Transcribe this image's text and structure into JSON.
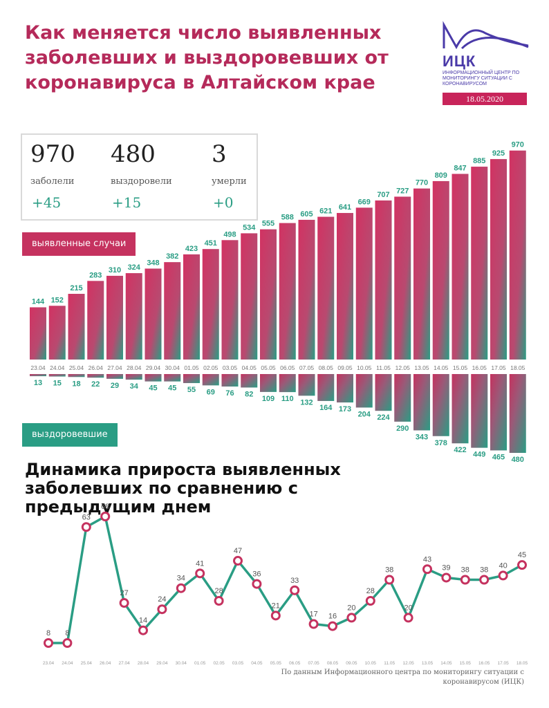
{
  "title": "Как меняется число выявленных заболевших и выздоровевших от коронавируса в Алтайском крае",
  "logo": {
    "abbr": "ИЦК",
    "subtitle": "ИНФОРМАЦИОННЫЙ ЦЕНТР ПО МОНИТОРИНГУ СИТУАЦИИ С КОРОНАВИРУСОМ",
    "date": "18.05.2020"
  },
  "stats": {
    "cases": {
      "value": "970",
      "label": "заболели",
      "increase": "+45"
    },
    "recovered": {
      "value": "480",
      "label": "выздоровели",
      "increase": "+15"
    },
    "deaths": {
      "value": "3",
      "label": "умерли",
      "increase": "+0"
    }
  },
  "labels": {
    "cases_tag": "выявленные случаи",
    "recovered_tag": "выздоровевшие"
  },
  "subtitle": "Динамика прироста выявленных заболевших по сравнению с предыдущим днем",
  "source": "По данным Информационного центра по мониторингу ситуации с коронавирусом (ИЦК)",
  "colors": {
    "accent": "#c5325f",
    "teal": "#2a9d84",
    "logo": "#4a3aa8"
  },
  "chart_data": [
    {
      "type": "bar",
      "title": "Выявленные случаи и выздоровевшие",
      "categories": [
        "23.04",
        "24.04",
        "25.04",
        "26.04",
        "27.04",
        "28.04",
        "29.04",
        "30.04",
        "01.05",
        "02.05",
        "03.05",
        "04.05",
        "05.05",
        "06.05",
        "07.05",
        "08.05",
        "09.05",
        "10.05",
        "11.05",
        "12.05",
        "13.05",
        "14.05",
        "15.05",
        "16.05",
        "17.05",
        "18.05"
      ],
      "series": [
        {
          "name": "выявленные случаи",
          "values": [
            144,
            152,
            215,
            283,
            310,
            324,
            348,
            382,
            423,
            451,
            498,
            534,
            555,
            588,
            605,
            621,
            641,
            669,
            707,
            727,
            770,
            809,
            847,
            885,
            925,
            970
          ]
        },
        {
          "name": "выздоровевшие",
          "values": [
            13,
            15,
            18,
            22,
            29,
            34,
            45,
            45,
            55,
            69,
            76,
            82,
            109,
            110,
            132,
            164,
            173,
            204,
            224,
            290,
            343,
            378,
            422,
            449,
            465,
            480
          ]
        }
      ]
    },
    {
      "type": "line",
      "title": "Динамика прироста выявленных заболевших по сравнению с предыдущим днем",
      "categories": [
        "23.04",
        "24.04",
        "25.04",
        "26.04",
        "27.04",
        "28.04",
        "29.04",
        "30.04",
        "01.05",
        "02.05",
        "03.05",
        "04.05",
        "05.05",
        "06.05",
        "07.05",
        "08.05",
        "09.05",
        "10.05",
        "11.05",
        "12.05",
        "13.05",
        "14.05",
        "15.05",
        "16.05",
        "17.05",
        "18.05"
      ],
      "values": [
        8,
        8,
        63,
        68,
        27,
        14,
        24,
        34,
        41,
        28,
        47,
        36,
        21,
        33,
        17,
        16,
        20,
        28,
        38,
        20,
        43,
        39,
        38,
        38,
        40,
        45
      ],
      "ylim": [
        0,
        70
      ]
    }
  ]
}
